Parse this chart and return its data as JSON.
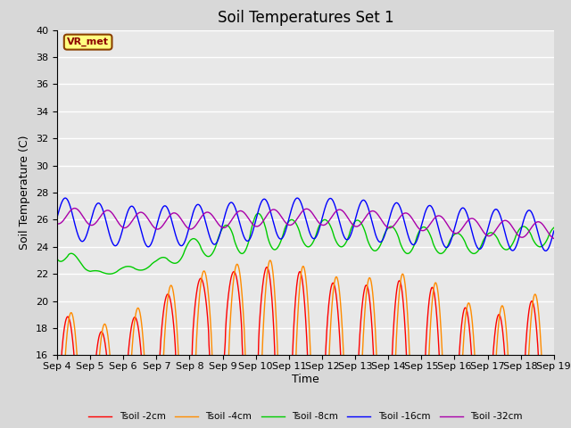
{
  "title": "Soil Temperatures Set 1",
  "xlabel": "Time",
  "ylabel": "Soil Temperature (C)",
  "ylim": [
    16,
    40
  ],
  "yticks": [
    16,
    18,
    20,
    22,
    24,
    26,
    28,
    30,
    32,
    34,
    36,
    38,
    40
  ],
  "xtick_labels": [
    "Sep 4",
    "Sep 5",
    "Sep 6",
    "Sep 7",
    "Sep 8",
    "Sep 9",
    "Sep 10",
    "Sep 11",
    "Sep 12",
    "Sep 13",
    "Sep 14",
    "Sep 15",
    "Sep 16",
    "Sep 17",
    "Sep 18",
    "Sep 19"
  ],
  "legend_entries": [
    "Tsoil -2cm",
    "Tsoil -4cm",
    "Tsoil -8cm",
    "Tsoil -16cm",
    "Tsoil -32cm"
  ],
  "line_colors": [
    "#ff0000",
    "#ff8c00",
    "#00cc00",
    "#0000ff",
    "#aa00aa"
  ],
  "background_color": "#d8d8d8",
  "plot_bg_color": "#e8e8e8",
  "title_fontsize": 12,
  "label_fontsize": 9,
  "tick_fontsize": 8,
  "grid_color": "#ffffff",
  "annotation_text": "VR_met"
}
